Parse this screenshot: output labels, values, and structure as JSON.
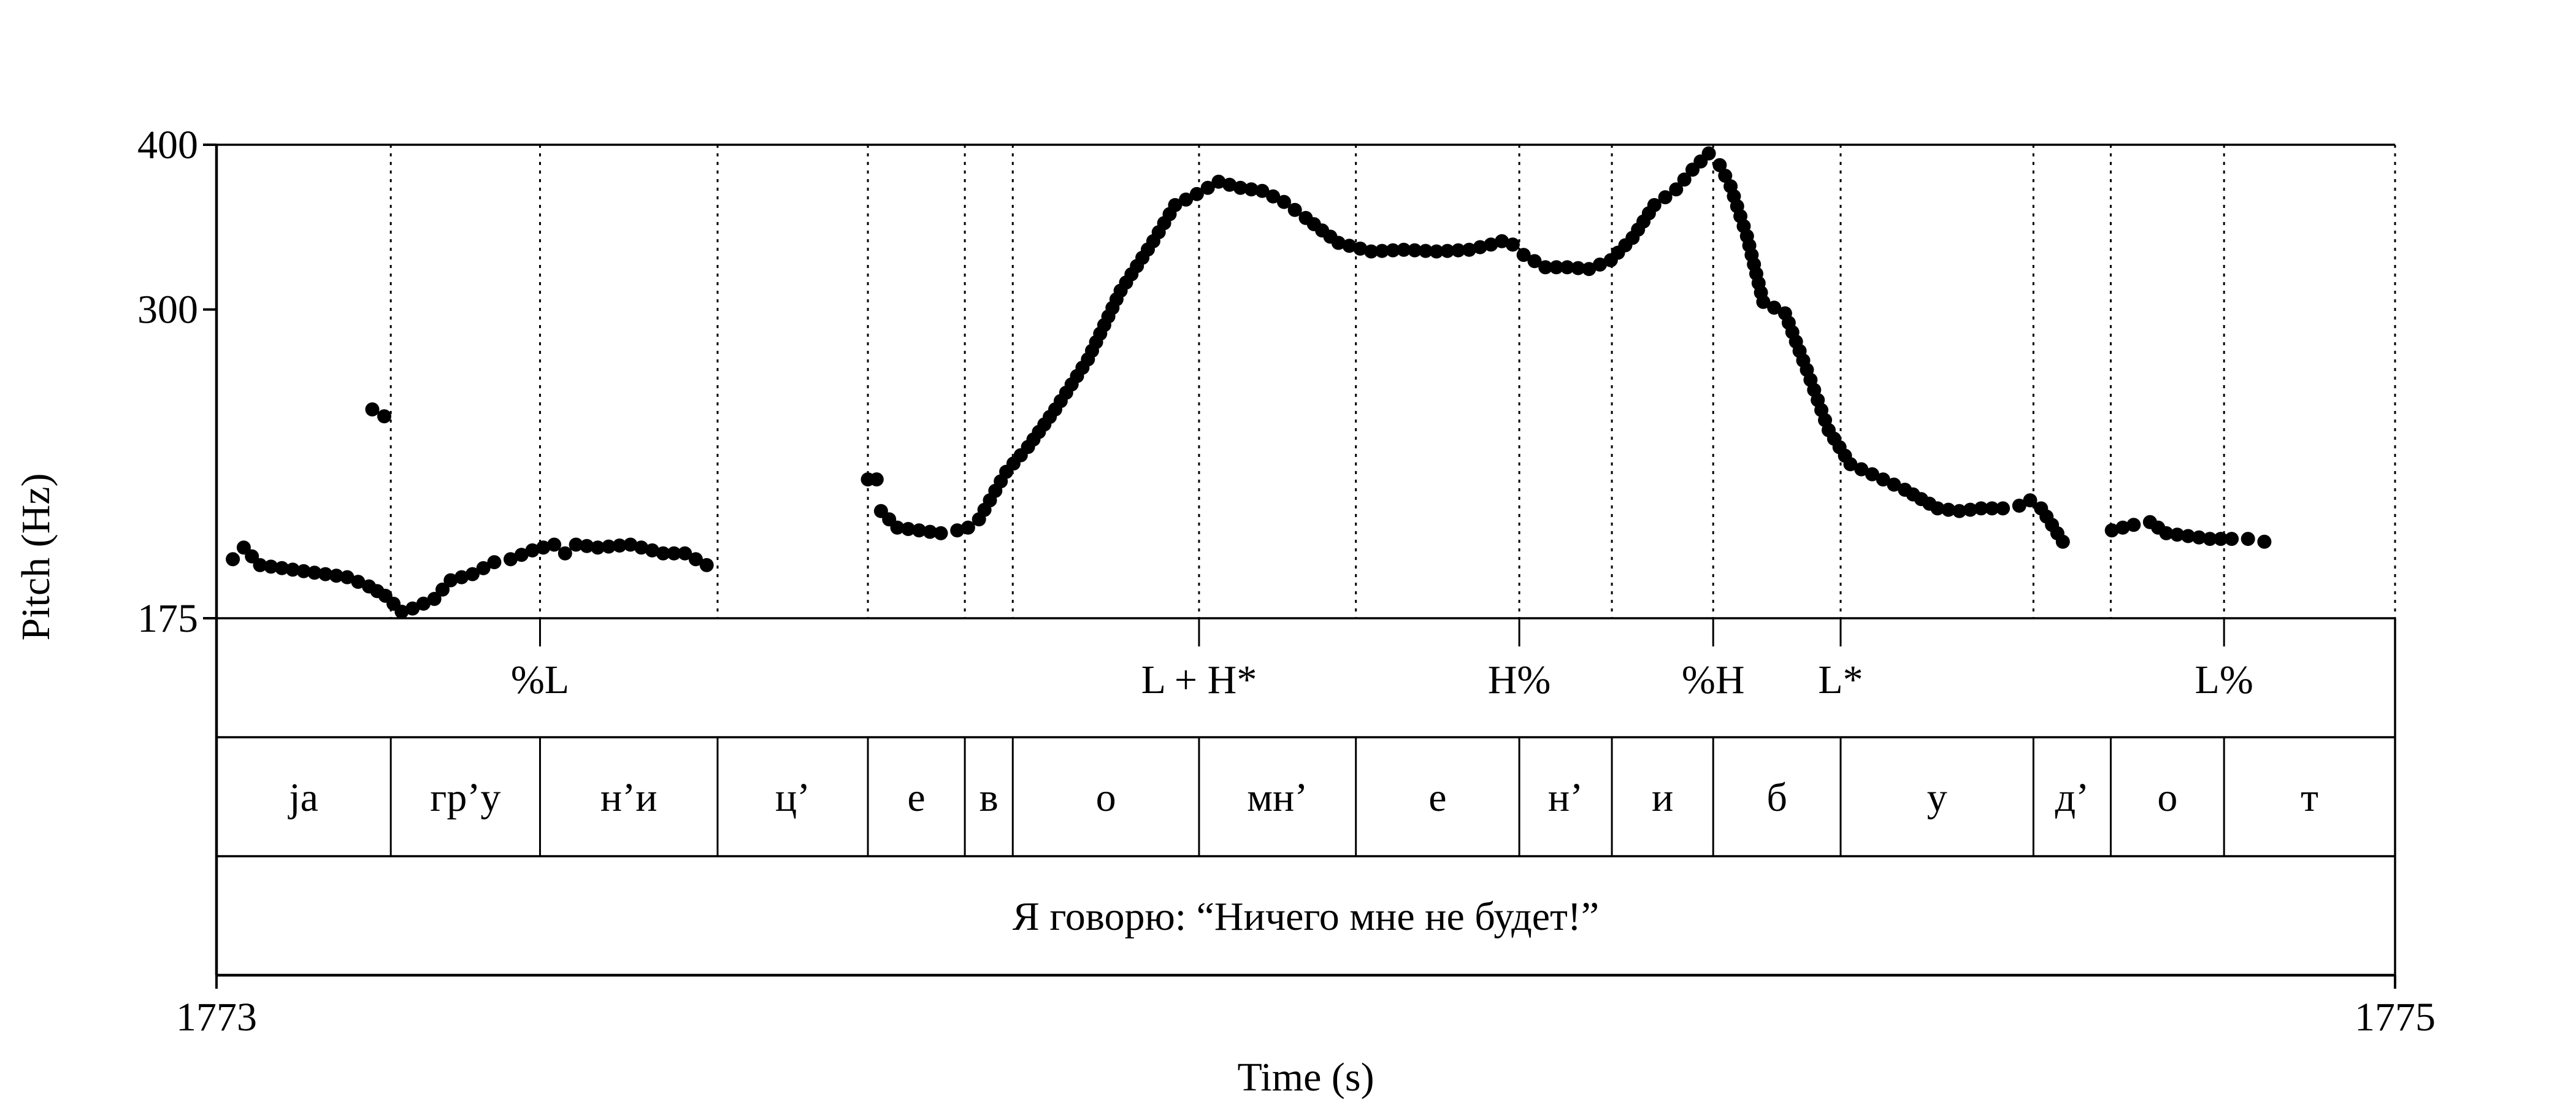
{
  "chart_data": {
    "type": "scatter",
    "title": "",
    "xlabel": "Time (s)",
    "ylabel": "Pitch (Hz)",
    "xlim": [
      1773,
      1775
    ],
    "ylim": [
      175,
      400
    ],
    "yscale": "log",
    "x_tick_labels": [
      "1773",
      "1775"
    ],
    "y_ticks": [
      175,
      300,
      400
    ],
    "y_tick_labels": [
      "175",
      "300",
      "400"
    ],
    "boundaries": [
      1773.16,
      1773.297,
      1773.46,
      1773.598,
      1773.687,
      1773.731,
      1773.902,
      1774.046,
      1774.196,
      1774.281,
      1774.374,
      1774.491,
      1774.668,
      1774.739,
      1774.843
    ],
    "tone_tier": [
      {
        "t": 1773.297,
        "label": "%L"
      },
      {
        "t": 1773.902,
        "label": "L + H*"
      },
      {
        "t": 1774.196,
        "label": "H%"
      },
      {
        "t": 1774.374,
        "label": "%H"
      },
      {
        "t": 1774.491,
        "label": "L*"
      },
      {
        "t": 1774.843,
        "label": "L%"
      }
    ],
    "segment_tier": [
      {
        "start": 1773.0,
        "end": 1773.16,
        "label": "ja"
      },
      {
        "start": 1773.16,
        "end": 1773.297,
        "label": "гр’у"
      },
      {
        "start": 1773.297,
        "end": 1773.46,
        "label": "н’и"
      },
      {
        "start": 1773.46,
        "end": 1773.598,
        "label": "ц’"
      },
      {
        "start": 1773.598,
        "end": 1773.687,
        "label": "е"
      },
      {
        "start": 1773.687,
        "end": 1773.731,
        "label": "в"
      },
      {
        "start": 1773.731,
        "end": 1773.902,
        "label": "о"
      },
      {
        "start": 1773.902,
        "end": 1774.046,
        "label": "мн’"
      },
      {
        "start": 1774.046,
        "end": 1774.196,
        "label": "е"
      },
      {
        "start": 1774.196,
        "end": 1774.281,
        "label": "н’"
      },
      {
        "start": 1774.281,
        "end": 1774.374,
        "label": "и"
      },
      {
        "start": 1774.374,
        "end": 1774.491,
        "label": "б"
      },
      {
        "start": 1774.491,
        "end": 1774.668,
        "label": "у"
      },
      {
        "start": 1774.668,
        "end": 1774.739,
        "label": "д’"
      },
      {
        "start": 1774.739,
        "end": 1774.843,
        "label": "о"
      },
      {
        "start": 1774.843,
        "end": 1775.0,
        "label": "т"
      }
    ],
    "sentence_tier": "Я говорю: “Ничего мне не будет!”",
    "pitch_segments": [
      {
        "x": [
          1773.015,
          1773.025,
          1773.04,
          1773.06,
          1773.08,
          1773.1,
          1773.12,
          1773.14,
          1773.155,
          1773.17
        ],
        "y": [
          194,
          198,
          192,
          191,
          190,
          189,
          188,
          185,
          182,
          177
        ]
      },
      {
        "x": [
          1773.143,
          1773.154
        ],
        "y": [
          252,
          249
        ]
      },
      {
        "x": [
          1773.18,
          1773.2,
          1773.215,
          1773.235,
          1773.255,
          1773.27,
          1773.29,
          1773.31,
          1773.32,
          1773.33,
          1773.35,
          1773.38,
          1773.41,
          1773.43,
          1773.45
        ],
        "y": [
          178,
          181,
          187,
          189,
          193,
          194,
          197,
          199,
          196,
          199,
          198,
          199,
          196,
          196,
          192
        ]
      },
      {
        "x": [
          1773.598,
          1773.606
        ],
        "y": [
          223,
          223
        ]
      },
      {
        "x": [
          1773.61,
          1773.625,
          1773.645,
          1773.665,
          1773.68,
          1773.69,
          1773.7,
          1773.71,
          1773.725,
          1773.745,
          1773.77,
          1773.8,
          1773.83,
          1773.86,
          1773.88,
          1773.9,
          1773.92,
          1773.94,
          1773.96,
          1773.98,
          1774.0,
          1774.03,
          1774.06,
          1774.09,
          1774.12,
          1774.15,
          1774.17,
          1774.18,
          1774.19,
          1774.2,
          1774.22,
          1774.24,
          1774.26,
          1774.28,
          1774.3,
          1774.32,
          1774.34,
          1774.355,
          1774.37,
          1774.38,
          1774.39,
          1774.405,
          1774.42,
          1774.44,
          1774.46,
          1774.48,
          1774.5,
          1774.52,
          1774.55,
          1774.58,
          1774.6,
          1774.62,
          1774.64,
          1774.655,
          1774.665,
          1774.675,
          1774.685,
          1774.695
        ],
        "y": [
          211,
          205,
          204,
          203,
          204,
          205,
          208,
          215,
          226,
          236,
          252,
          275,
          310,
          338,
          360,
          367,
          375,
          371,
          369,
          362,
          352,
          337,
          332,
          333,
          332,
          333,
          336,
          338,
          336,
          330,
          323,
          323,
          322,
          327,
          340,
          360,
          370,
          383,
          394,
          386,
          372,
          341,
          304,
          298,
          270,
          243,
          229,
          225,
          219,
          212,
          211,
          212,
          212,
          213,
          215,
          212,
          206,
          200
        ]
      },
      {
        "x": [
          1774.74,
          1774.76,
          1774.775,
          1774.79,
          1774.81,
          1774.83,
          1774.85,
          1774.865,
          1774.88
        ],
        "y": [
          204,
          206,
          207,
          203,
          202,
          201,
          201,
          201,
          200
        ]
      }
    ]
  }
}
